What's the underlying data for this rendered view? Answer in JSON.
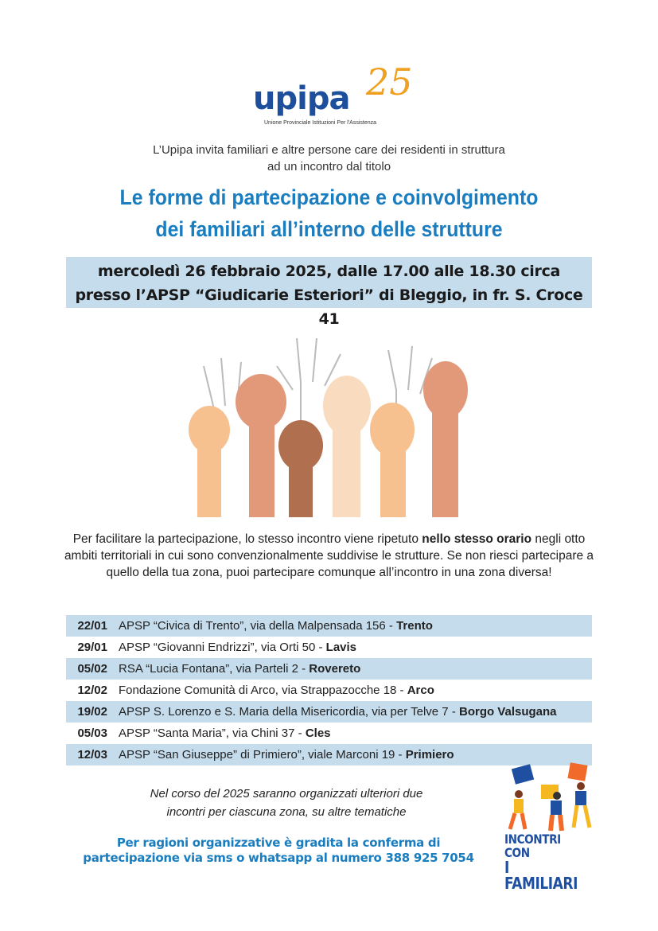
{
  "logo": {
    "name": "upipa",
    "number": "25",
    "subtitle": "Unione Provinciale Istituzioni Per l'Assistenza"
  },
  "intro": [
    "L’Upipa invita familiari e altre persone care dei residenti in struttura",
    "ad un incontro dal titolo"
  ],
  "title": [
    "Le forme di partecipazione e coinvolgimento",
    "dei familiari all’interno delle strutture"
  ],
  "event": {
    "date": "mercoledì 26 febbraio 2025, dalle 17.00 alle 18.30 circa",
    "place": "presso l’APSP “Giudicarie Esteriori” di Bleggio, in fr. S. Croce 41"
  },
  "paragraph": {
    "before": "Per facilitare la partecipazione, lo stesso incontro viene ripetuto ",
    "bold": "nello stesso orario",
    "after": " negli otto ambiti territoriali in cui sono convenzionalmente suddivise le strutture. Se non riesci partecipare a quello della tua zona, puoi partecipare comunque all’incontro in una zona diversa!"
  },
  "meetings": [
    {
      "date": "22/01",
      "venue": "APSP “Civica di Trento”, via della Malpensada 156 - ",
      "town": "Trento"
    },
    {
      "date": "29/01",
      "venue": "APSP “Giovanni Endrizzi”, via Orti 50 - ",
      "town": "Lavis"
    },
    {
      "date": "05/02",
      "venue": "RSA “Lucia Fontana”, via Parteli 2 - ",
      "town": "Rovereto"
    },
    {
      "date": "12/02",
      "venue": "Fondazione Comunità di Arco, via Strappazocche 18 - ",
      "town": "Arco"
    },
    {
      "date": "19/02",
      "venue": "APSP S. Lorenzo e S. Maria della Misericordia, via per Telve 7 - ",
      "town": "Borgo Valsugana"
    },
    {
      "date": "05/03",
      "venue": "APSP “Santa Maria”, via Chini 37 - ",
      "town": "Cles"
    },
    {
      "date": "12/03",
      "venue": "APSP “San Giuseppe” di Primiero”, viale Marconi 19 - ",
      "town": "Primiero"
    }
  ],
  "note": [
    "Nel corso del 2025 saranno organizzati ulteriori due",
    "incontri per ciascuna zona, su altre tematiche"
  ],
  "confirmation": [
    "Per ragioni organizzative è gradita la conferma di",
    "partecipazione via sms o whatsapp al numero 388 925 7054"
  ],
  "badge": [
    "INCONTRI CON",
    "I FAMILIARI"
  ],
  "colors": {
    "accent": "#1a7dbf",
    "band": "#c5dced",
    "logo_blue": "#1d4f9c",
    "logo_orange": "#f0a020"
  }
}
